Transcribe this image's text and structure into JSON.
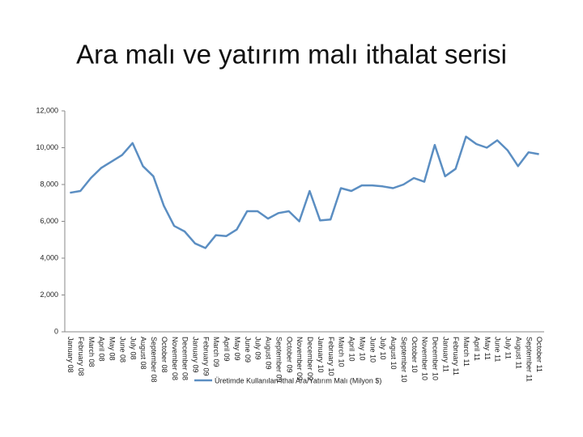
{
  "chart_data": {
    "type": "line",
    "title": "Ara malı ve yatırım malı ithalat serisi",
    "categories": [
      "January 08",
      "February 08",
      "March 08",
      "April 08",
      "May 08",
      "June 08",
      "July 08",
      "August 08",
      "September 08",
      "October 08",
      "November 08",
      "December 08",
      "January 09",
      "February 09",
      "March 09",
      "April 09",
      "May 09",
      "June 09",
      "July 09",
      "August 09",
      "September 09",
      "October 09",
      "November 09",
      "December 09",
      "January 10",
      "February 10",
      "March 10",
      "April 10",
      "May 10",
      "June 10",
      "July 10",
      "August 10",
      "September 10",
      "October 10",
      "November 10",
      "December 10",
      "January 11",
      "February 11",
      "March 11",
      "April 11",
      "May 11",
      "June 11",
      "July 11",
      "August 11",
      "September 11",
      "October 11"
    ],
    "series": [
      {
        "name": "Üretimde Kullanılan İthal Ara/Yatırım Malı (Milyon $)",
        "color": "#5b8ec2",
        "values": [
          7550,
          7650,
          8350,
          8900,
          9250,
          9600,
          10250,
          9000,
          8450,
          6850,
          5750,
          5450,
          4800,
          4550,
          5250,
          5200,
          5550,
          6550,
          6550,
          6150,
          6450,
          6550,
          6000,
          7650,
          6050,
          6100,
          7800,
          7650,
          7950,
          7950,
          7900,
          7800,
          8000,
          8350,
          8150,
          10150,
          8450,
          8850,
          10600,
          10200,
          10000,
          10400,
          9850,
          9000,
          9750,
          9650
        ]
      }
    ],
    "ylim": [
      0,
      12000
    ],
    "yticks": [
      0,
      {
        "value": 2000,
        "label": "2,000"
      },
      {
        "value": 4000,
        "label": "4,000"
      },
      {
        "value": 6000,
        "label": "6,000"
      },
      {
        "value": 8000,
        "label": "8,000"
      },
      {
        "value": 10000,
        "label": "10,000"
      },
      {
        "value": 12000,
        "label": "12,000"
      }
    ]
  }
}
